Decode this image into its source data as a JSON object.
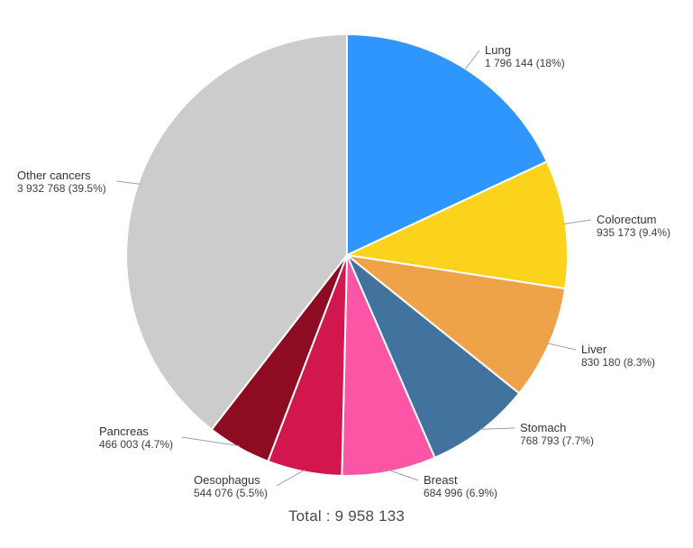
{
  "chart_data": {
    "type": "pie",
    "title": "Total : 9 958 133",
    "total_label": "Total : 9 958 133",
    "total_value": 9958133,
    "direction": "clockwise",
    "start_angle_deg": 0,
    "legend_position": "outside-labels-with-leader-lines",
    "leader_line_color": "#9e9e9e",
    "slice_border_color": "#ffffff",
    "slices": [
      {
        "label": "Lung",
        "value": 1796144,
        "percent": 18,
        "value_label": "1 796 144 (18%)",
        "color": "#2E96FC"
      },
      {
        "label": "Colorectum",
        "value": 935173,
        "percent": 9.4,
        "value_label": "935 173 (9.4%)",
        "color": "#FBD31C"
      },
      {
        "label": "Liver",
        "value": 830180,
        "percent": 8.3,
        "value_label": "830 180 (8.3%)",
        "color": "#EFA349"
      },
      {
        "label": "Stomach",
        "value": 768793,
        "percent": 7.7,
        "value_label": "768 793 (7.7%)",
        "color": "#41739E"
      },
      {
        "label": "Breast",
        "value": 684996,
        "percent": 6.9,
        "value_label": "684 996 (6.9%)",
        "color": "#FB56A5"
      },
      {
        "label": "Oesophagus",
        "value": 544076,
        "percent": 5.5,
        "value_label": "544 076 (5.5%)",
        "color": "#D2164E"
      },
      {
        "label": "Pancreas",
        "value": 466003,
        "percent": 4.7,
        "value_label": "466 003 (4.7%)",
        "color": "#8E0C21"
      },
      {
        "label": "Other cancers",
        "value": 3932768,
        "percent": 39.5,
        "value_label": "3 932 768 (39.5%)",
        "color": "#CCCCCC"
      }
    ]
  }
}
